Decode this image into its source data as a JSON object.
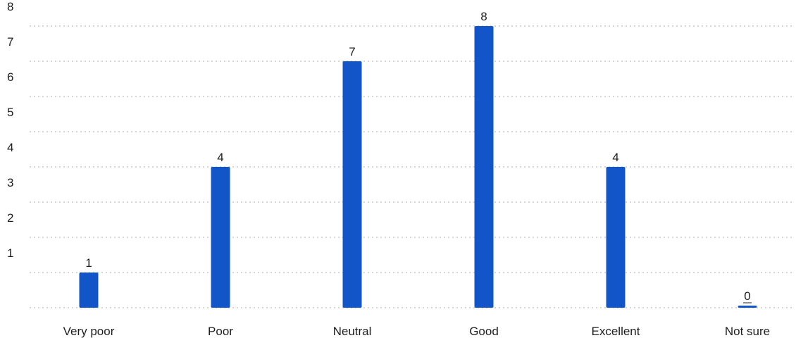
{
  "chart_data": {
    "type": "bar",
    "categories": [
      "Very poor",
      "Poor",
      "Neutral",
      "Good",
      "Excellent",
      "Not sure"
    ],
    "values": [
      1,
      4,
      7,
      8,
      4,
      0
    ],
    "yticks": [
      1,
      2,
      3,
      4,
      5,
      6,
      7,
      8
    ],
    "ylim": [
      0,
      8
    ],
    "grid": true,
    "legend": "none",
    "colors": {
      "bar": "#1155c8",
      "grid": "#c8c8c8",
      "text": "#1f1f1f"
    }
  }
}
